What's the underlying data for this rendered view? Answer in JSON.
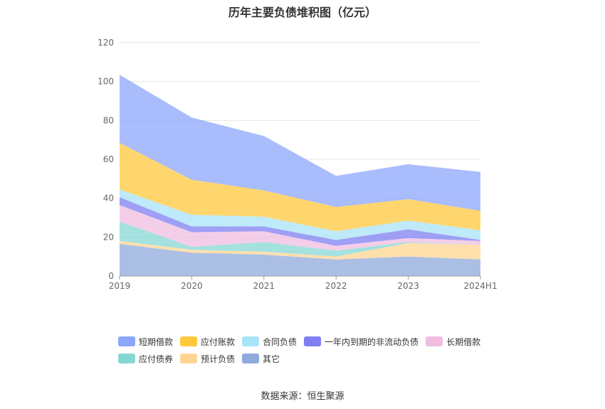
{
  "header": {
    "title": "历年主要负债堆积图（亿元）"
  },
  "footer": {
    "source": "数据来源：恒生聚源"
  },
  "chart_data": {
    "type": "area",
    "stacked": true,
    "title": "历年主要负债堆积图（亿元）",
    "categories": [
      "2019",
      "2020",
      "2021",
      "2022",
      "2023",
      "2024H1"
    ],
    "ylim": [
      0,
      120
    ],
    "yticks": [
      0,
      20,
      40,
      60,
      80,
      100,
      120
    ],
    "grid": true,
    "legend_position": "bottom",
    "series": [
      {
        "name": "其它",
        "color": "#8faadc",
        "values": [
          16.5,
          12.0,
          11.0,
          8.5,
          10.0,
          8.5
        ]
      },
      {
        "name": "预计负债",
        "color": "#ffd591",
        "values": [
          1.5,
          1.5,
          1.5,
          1.5,
          7.0,
          7.5
        ]
      },
      {
        "name": "应付债券",
        "color": "#86d7d4",
        "values": [
          10.0,
          1.5,
          5.0,
          3.0,
          0.5,
          0.0
        ]
      },
      {
        "name": "长期借款",
        "color": "#f0bde0",
        "values": [
          8.5,
          7.5,
          5.5,
          2.5,
          2.0,
          2.0
        ]
      },
      {
        "name": "一年内到期的非流动负债",
        "color": "#7f7ff2",
        "values": [
          4.0,
          3.0,
          2.5,
          3.0,
          4.5,
          0.5
        ]
      },
      {
        "name": "合同负债",
        "color": "#a8e3f7",
        "values": [
          4.0,
          6.0,
          5.0,
          4.5,
          4.5,
          5.0
        ]
      },
      {
        "name": "应付账款",
        "color": "#ffc83d",
        "values": [
          24.0,
          18.0,
          13.5,
          12.5,
          11.0,
          10.0
        ]
      },
      {
        "name": "短期借款",
        "color": "#8ca6fb",
        "values": [
          35.0,
          32.0,
          28.0,
          16.0,
          18.0,
          20.0
        ]
      }
    ],
    "legend_order": [
      "短期借款",
      "应付账款",
      "合同负债",
      "一年内到期的非流动负债",
      "长期借款",
      "应付债券",
      "预计负债",
      "其它"
    ]
  }
}
